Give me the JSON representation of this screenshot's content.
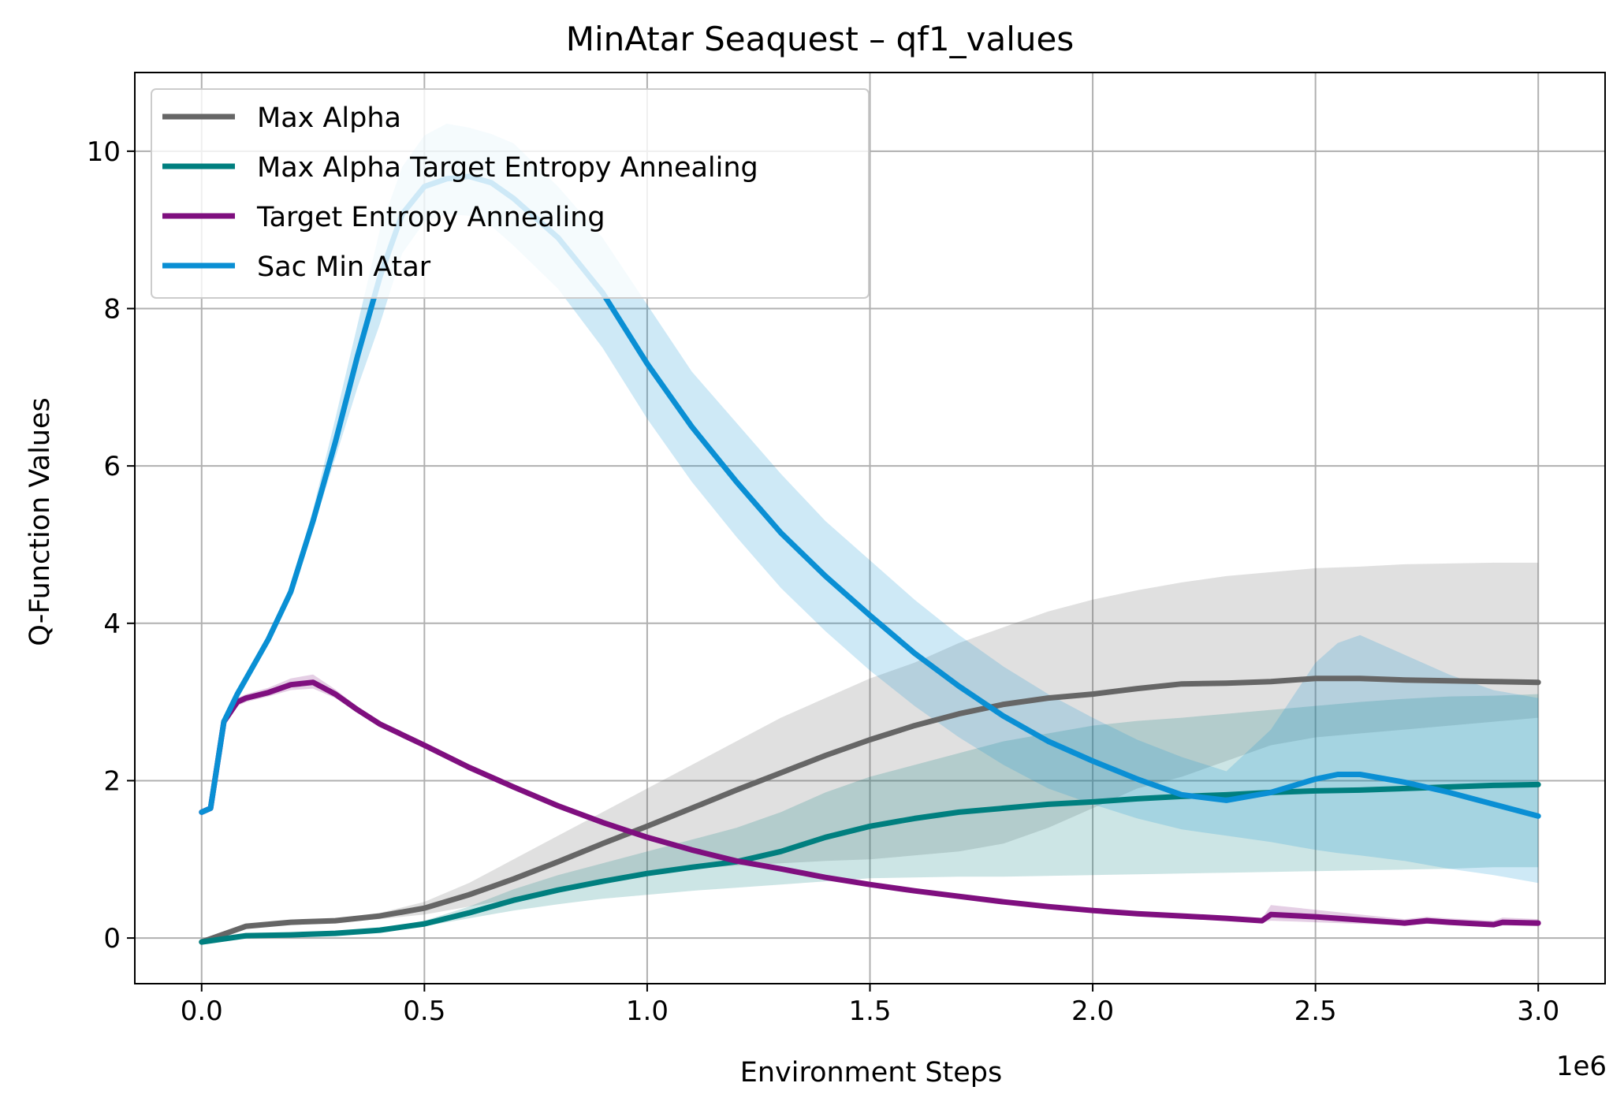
{
  "chart_data": {
    "type": "line",
    "title": "MinAtar Seaquest – qf1_values",
    "xlabel": "Environment Steps",
    "ylabel": "Q-Function Values",
    "x_offset_label": "1e6",
    "xlim": [
      -0.15,
      3.15
    ],
    "ylim": [
      -0.58,
      11.0
    ],
    "x_ticks": [
      0.0,
      0.5,
      1.0,
      1.5,
      2.0,
      2.5,
      3.0
    ],
    "x_tick_labels": [
      "0.0",
      "0.5",
      "1.0",
      "1.5",
      "2.0",
      "2.5",
      "3.0"
    ],
    "y_ticks": [
      0,
      2,
      4,
      6,
      8,
      10
    ],
    "y_tick_labels": [
      "0",
      "2",
      "4",
      "6",
      "8",
      "10"
    ],
    "grid": true,
    "legend_position": "upper left",
    "series": [
      {
        "name": "Max Alpha",
        "color": "#666666",
        "band_opacity": 0.2,
        "x": [
          0.0,
          0.1,
          0.2,
          0.3,
          0.4,
          0.5,
          0.6,
          0.7,
          0.8,
          0.9,
          1.0,
          1.1,
          1.2,
          1.3,
          1.4,
          1.5,
          1.6,
          1.7,
          1.8,
          1.9,
          2.0,
          2.1,
          2.2,
          2.3,
          2.4,
          2.5,
          2.6,
          2.7,
          2.8,
          2.9,
          3.0
        ],
        "y": [
          -0.05,
          0.15,
          0.2,
          0.22,
          0.28,
          0.38,
          0.55,
          0.75,
          0.97,
          1.2,
          1.42,
          1.65,
          1.88,
          2.1,
          2.32,
          2.52,
          2.7,
          2.85,
          2.97,
          3.05,
          3.1,
          3.17,
          3.23,
          3.24,
          3.26,
          3.3,
          3.3,
          3.28,
          3.27,
          3.26,
          3.25
        ],
        "lower": [
          -0.05,
          0.14,
          0.18,
          0.2,
          0.24,
          0.3,
          0.4,
          0.5,
          0.6,
          0.7,
          0.8,
          0.88,
          0.92,
          0.95,
          0.98,
          1.0,
          1.05,
          1.1,
          1.2,
          1.4,
          1.65,
          1.9,
          2.05,
          2.25,
          2.45,
          2.55,
          2.6,
          2.65,
          2.7,
          2.75,
          2.8
        ],
        "upper": [
          -0.05,
          0.16,
          0.22,
          0.25,
          0.32,
          0.46,
          0.7,
          1.0,
          1.3,
          1.6,
          1.9,
          2.2,
          2.5,
          2.8,
          3.05,
          3.3,
          3.5,
          3.75,
          3.95,
          4.15,
          4.3,
          4.42,
          4.52,
          4.6,
          4.65,
          4.7,
          4.72,
          4.75,
          4.76,
          4.77,
          4.77
        ]
      },
      {
        "name": "Max Alpha Target Entropy Annealing",
        "color": "#007f7f",
        "band_opacity": 0.2,
        "x": [
          0.0,
          0.1,
          0.2,
          0.3,
          0.4,
          0.5,
          0.6,
          0.7,
          0.8,
          0.9,
          1.0,
          1.1,
          1.2,
          1.3,
          1.4,
          1.5,
          1.6,
          1.7,
          1.8,
          1.9,
          2.0,
          2.1,
          2.2,
          2.3,
          2.4,
          2.5,
          2.6,
          2.7,
          2.8,
          2.9,
          3.0
        ],
        "y": [
          -0.05,
          0.03,
          0.04,
          0.06,
          0.1,
          0.18,
          0.32,
          0.48,
          0.61,
          0.72,
          0.82,
          0.9,
          0.97,
          1.1,
          1.28,
          1.42,
          1.52,
          1.6,
          1.65,
          1.7,
          1.73,
          1.77,
          1.8,
          1.82,
          1.85,
          1.87,
          1.88,
          1.9,
          1.92,
          1.94,
          1.95
        ],
        "lower": [
          -0.05,
          0.02,
          0.03,
          0.05,
          0.08,
          0.15,
          0.25,
          0.35,
          0.43,
          0.5,
          0.55,
          0.6,
          0.64,
          0.68,
          0.72,
          0.76,
          0.77,
          0.78,
          0.78,
          0.79,
          0.8,
          0.81,
          0.82,
          0.83,
          0.84,
          0.85,
          0.86,
          0.87,
          0.88,
          0.9,
          0.9
        ],
        "upper": [
          -0.05,
          0.04,
          0.05,
          0.07,
          0.12,
          0.22,
          0.4,
          0.62,
          0.8,
          0.95,
          1.1,
          1.25,
          1.4,
          1.6,
          1.85,
          2.05,
          2.2,
          2.35,
          2.5,
          2.6,
          2.7,
          2.76,
          2.8,
          2.85,
          2.9,
          2.95,
          3.0,
          3.04,
          3.07,
          3.08,
          3.1
        ]
      },
      {
        "name": "Target Entropy Annealing",
        "color": "#7f0f7f",
        "band_opacity": 0.2,
        "x": [
          0.0,
          0.02,
          0.05,
          0.08,
          0.1,
          0.15,
          0.2,
          0.25,
          0.3,
          0.35,
          0.4,
          0.5,
          0.6,
          0.7,
          0.8,
          0.9,
          1.0,
          1.1,
          1.2,
          1.3,
          1.4,
          1.5,
          1.6,
          1.7,
          1.8,
          1.9,
          2.0,
          2.1,
          2.2,
          2.3,
          2.38,
          2.4,
          2.5,
          2.6,
          2.7,
          2.75,
          2.8,
          2.9,
          2.92,
          3.0
        ],
        "y": [
          1.6,
          1.65,
          2.75,
          3.0,
          3.05,
          3.12,
          3.22,
          3.25,
          3.1,
          2.9,
          2.72,
          2.45,
          2.17,
          1.92,
          1.68,
          1.47,
          1.28,
          1.12,
          0.98,
          0.88,
          0.77,
          0.68,
          0.6,
          0.53,
          0.46,
          0.4,
          0.35,
          0.31,
          0.28,
          0.25,
          0.22,
          0.3,
          0.27,
          0.23,
          0.19,
          0.22,
          0.2,
          0.17,
          0.2,
          0.19
        ],
        "lower": [
          1.58,
          1.62,
          2.7,
          2.95,
          3.0,
          3.07,
          3.15,
          3.17,
          3.05,
          2.86,
          2.69,
          2.42,
          2.14,
          1.9,
          1.66,
          1.45,
          1.26,
          1.1,
          0.96,
          0.86,
          0.75,
          0.66,
          0.58,
          0.51,
          0.44,
          0.38,
          0.33,
          0.29,
          0.26,
          0.23,
          0.2,
          0.22,
          0.2,
          0.18,
          0.16,
          0.18,
          0.17,
          0.14,
          0.16,
          0.15
        ],
        "upper": [
          1.62,
          1.68,
          2.8,
          3.05,
          3.1,
          3.18,
          3.3,
          3.35,
          3.16,
          2.94,
          2.76,
          2.48,
          2.2,
          1.95,
          1.7,
          1.5,
          1.3,
          1.14,
          1.0,
          0.9,
          0.79,
          0.7,
          0.62,
          0.55,
          0.48,
          0.42,
          0.37,
          0.33,
          0.3,
          0.27,
          0.25,
          0.42,
          0.36,
          0.3,
          0.24,
          0.27,
          0.25,
          0.22,
          0.26,
          0.24
        ]
      },
      {
        "name": "Sac Min Atar",
        "color": "#0a8fd4",
        "band_opacity": 0.2,
        "x": [
          0.0,
          0.02,
          0.05,
          0.08,
          0.1,
          0.15,
          0.2,
          0.25,
          0.3,
          0.35,
          0.4,
          0.45,
          0.5,
          0.55,
          0.6,
          0.65,
          0.7,
          0.8,
          0.9,
          1.0,
          1.1,
          1.2,
          1.3,
          1.4,
          1.5,
          1.6,
          1.7,
          1.8,
          1.9,
          2.0,
          2.1,
          2.2,
          2.3,
          2.4,
          2.5,
          2.55,
          2.6,
          2.7,
          2.8,
          2.9,
          3.0
        ],
        "y": [
          1.6,
          1.65,
          2.75,
          3.1,
          3.3,
          3.8,
          4.4,
          5.3,
          6.3,
          7.4,
          8.4,
          9.2,
          9.55,
          9.65,
          9.68,
          9.6,
          9.4,
          8.9,
          8.2,
          7.3,
          6.5,
          5.8,
          5.15,
          4.6,
          4.1,
          3.62,
          3.2,
          2.82,
          2.5,
          2.25,
          2.02,
          1.82,
          1.75,
          1.85,
          2.02,
          2.08,
          2.08,
          1.98,
          1.85,
          1.7,
          1.55
        ],
        "lower": [
          1.58,
          1.62,
          2.7,
          3.05,
          3.25,
          3.75,
          4.35,
          5.2,
          6.1,
          7.0,
          7.8,
          8.7,
          9.1,
          9.2,
          9.18,
          9.05,
          8.8,
          8.25,
          7.5,
          6.6,
          5.8,
          5.1,
          4.45,
          3.9,
          3.4,
          2.95,
          2.55,
          2.2,
          1.9,
          1.7,
          1.52,
          1.38,
          1.3,
          1.22,
          1.12,
          1.08,
          1.05,
          0.98,
          0.88,
          0.8,
          0.7
        ],
        "upper": [
          1.62,
          1.68,
          2.8,
          3.15,
          3.35,
          3.85,
          4.45,
          5.45,
          6.6,
          7.8,
          9.0,
          9.8,
          10.2,
          10.35,
          10.3,
          10.22,
          10.1,
          9.55,
          8.9,
          8.05,
          7.2,
          6.55,
          5.9,
          5.3,
          4.8,
          4.3,
          3.85,
          3.45,
          3.1,
          2.8,
          2.52,
          2.3,
          2.12,
          2.65,
          3.5,
          3.75,
          3.85,
          3.6,
          3.35,
          3.15,
          3.05
        ]
      }
    ]
  }
}
